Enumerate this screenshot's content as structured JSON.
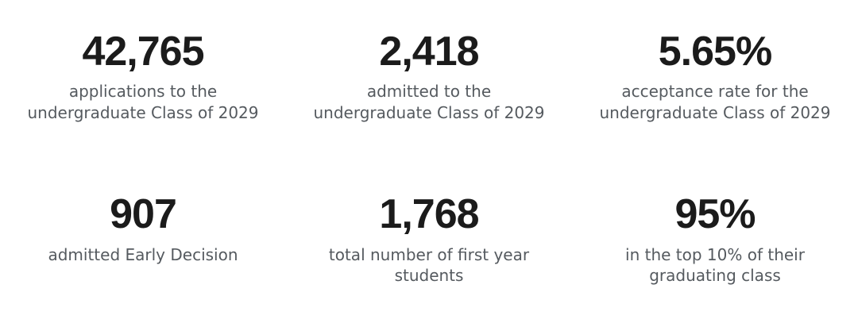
{
  "page": {
    "background_color": "#ffffff",
    "value_color": "#1b1b1b",
    "label_color": "#555a5f"
  },
  "stats": [
    {
      "value": "42,765",
      "label": "applications to the\nundergraduate Class of 2029"
    },
    {
      "value": "2,418",
      "label": "admitted to the\nundergraduate Class of 2029"
    },
    {
      "value": "5.65%",
      "label": "acceptance rate for the\nundergraduate Class of 2029"
    },
    {
      "value": "907",
      "label": "admitted Early Decision"
    },
    {
      "value": "1,768",
      "label": "total number of first year\nstudents"
    },
    {
      "value": "95%",
      "label": "in the top 10% of their\ngraduating class"
    }
  ]
}
